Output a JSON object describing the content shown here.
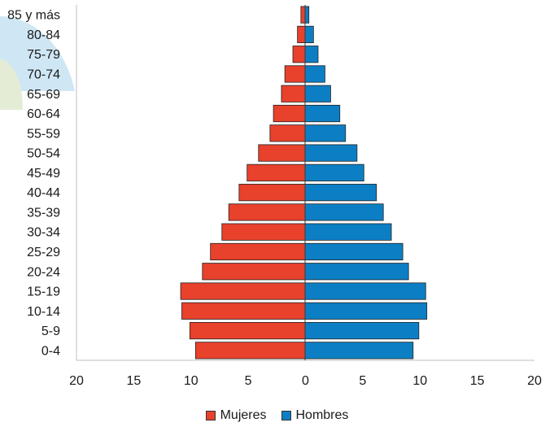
{
  "chart_data": {
    "type": "bar",
    "orientation": "horizontal",
    "subtype": "population-pyramid",
    "title": "",
    "xlabel": "",
    "ylabel": "",
    "categories": [
      "0-4",
      "5-9",
      "10-14",
      "15-19",
      "20-24",
      "25-29",
      "30-34",
      "35-39",
      "40-44",
      "45-49",
      "50-54",
      "55-59",
      "60-64",
      "65-69",
      "70-74",
      "75-79",
      "80-84",
      "85 y más"
    ],
    "series": [
      {
        "name": "Mujeres",
        "color": "#e8412c",
        "side": "left",
        "values": [
          9.6,
          10.1,
          10.8,
          10.9,
          9.0,
          8.3,
          7.3,
          6.7,
          5.8,
          5.1,
          4.1,
          3.1,
          2.8,
          2.1,
          1.8,
          1.1,
          0.7,
          0.4
        ]
      },
      {
        "name": "Hombres",
        "color": "#0c7fc4",
        "side": "right",
        "values": [
          9.4,
          9.9,
          10.6,
          10.5,
          9.0,
          8.5,
          7.5,
          6.8,
          6.2,
          5.1,
          4.5,
          3.5,
          3.0,
          2.2,
          1.7,
          1.1,
          0.7,
          0.3
        ]
      }
    ],
    "xlim": [
      -20,
      20
    ],
    "xticks": [
      {
        "value": -20,
        "label": "20"
      },
      {
        "value": -15,
        "label": "15"
      },
      {
        "value": -10,
        "label": "10"
      },
      {
        "value": -5,
        "label": "5"
      },
      {
        "value": 0,
        "label": "0"
      },
      {
        "value": 5,
        "label": "5"
      },
      {
        "value": 10,
        "label": "10"
      },
      {
        "value": 15,
        "label": "15"
      },
      {
        "value": 20,
        "label": "20"
      }
    ],
    "grid": false,
    "legend_position": "bottom"
  },
  "legend": {
    "items": [
      {
        "label": "Mujeres",
        "color": "#e8412c"
      },
      {
        "label": "Hombres",
        "color": "#0c7fc4"
      }
    ]
  }
}
